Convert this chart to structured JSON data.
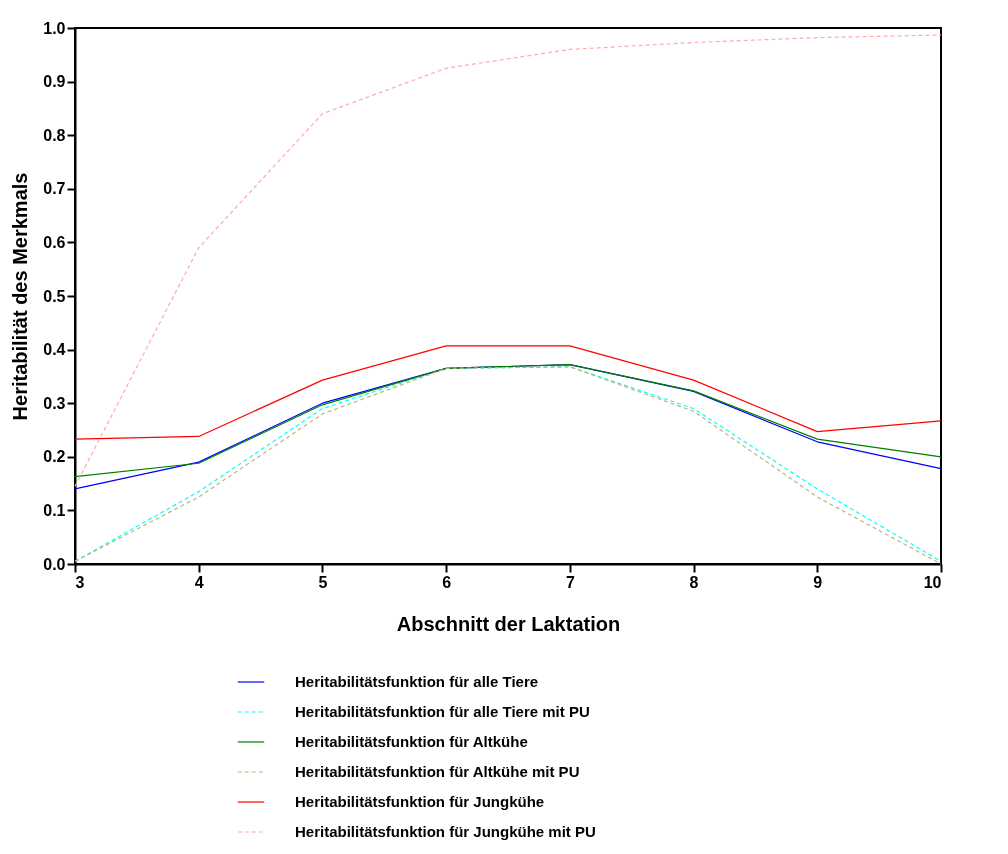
{
  "chart_data": {
    "type": "line",
    "xlabel": "Abschnitt der Laktation",
    "ylabel": "Heritabilität des Merkmals",
    "x": [
      3,
      4,
      5,
      6,
      7,
      8,
      9,
      10
    ],
    "xlim": [
      3,
      10
    ],
    "xticks": [
      3,
      4,
      5,
      6,
      7,
      8,
      9,
      10
    ],
    "ylim": [
      0,
      1
    ],
    "yticks": [
      {
        "value": 0,
        "label": "0.0"
      },
      {
        "value": 0.1,
        "label": "0.1"
      },
      {
        "value": 0.2,
        "label": "0.2"
      },
      {
        "value": 0.3,
        "label": "0.3"
      },
      {
        "value": 0.4,
        "label": "0.4"
      },
      {
        "value": 0.5,
        "label": "0.5"
      },
      {
        "value": 0.6,
        "label": "0.6"
      },
      {
        "value": 0.7,
        "label": "0.7"
      },
      {
        "value": 0.8,
        "label": "0.8"
      },
      {
        "value": 0.9,
        "label": "0.9"
      },
      {
        "value": 1,
        "label": "1.0"
      }
    ],
    "grid": false,
    "legend": "bottom",
    "marker": "none",
    "series": [
      {
        "name": "Heritabilitätsfunktion für alle Tiere",
        "color": "#0000ff",
        "line_style": "solid",
        "values": [
          0.14,
          0.19,
          0.3,
          0.365,
          0.372,
          0.322,
          0.228,
          0.178
        ]
      },
      {
        "name": "Heritabilitätsfunktion für alle Tiere mit PU",
        "color": "#00ffff",
        "line_style": "dashed",
        "values": [
          0.005,
          0.135,
          0.29,
          0.365,
          0.368,
          0.29,
          0.14,
          0.005
        ]
      },
      {
        "name": "Heritabilitätsfunktion für Altkühe",
        "color": "#008000",
        "line_style": "solid",
        "values": [
          0.163,
          0.188,
          0.297,
          0.365,
          0.372,
          0.323,
          0.233,
          0.2
        ]
      },
      {
        "name": "Heritabilitätsfunktion für Altkühe mit PU",
        "color": "#b8b878",
        "line_style": "dashed",
        "values": [
          0.005,
          0.125,
          0.28,
          0.365,
          0.368,
          0.285,
          0.125,
          0.0
        ]
      },
      {
        "name": "Heritabilitätsfunktion für Jungkühe",
        "color": "#ff0000",
        "line_style": "solid",
        "values": [
          0.233,
          0.238,
          0.343,
          0.407,
          0.407,
          0.343,
          0.247,
          0.267
        ]
      },
      {
        "name": "Heritabilitätsfunktion für Jungkühe mit PU",
        "color": "#ffaaaa",
        "line_style": "dashed",
        "values": [
          0.145,
          0.59,
          0.84,
          0.925,
          0.96,
          0.973,
          0.982,
          0.987
        ]
      }
    ]
  }
}
